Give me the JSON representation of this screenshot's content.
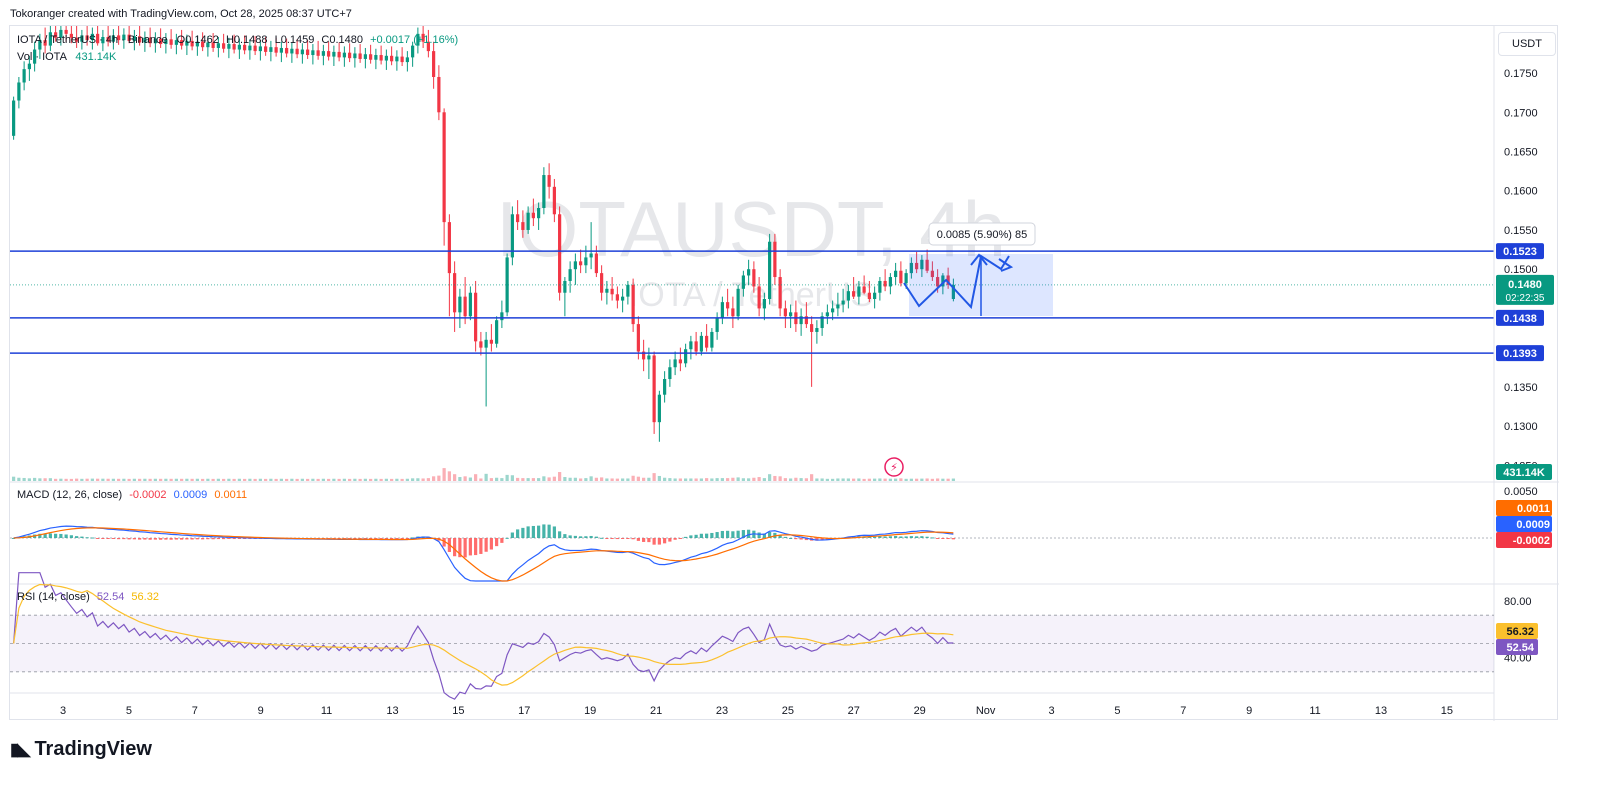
{
  "header": {
    "title": "Tokoranger created with TradingView.com, Oct 28, 2025 08:37 UTC+7"
  },
  "legend": {
    "symbol": "IOTA / TetherUS · 4h · Binance",
    "open": "O0.1462",
    "high": "H0.1488",
    "low": "L0.1459",
    "close": "C0.1480",
    "change": "+0.0017 (+1.16%)",
    "volume_label": "Vol · IOTA",
    "volume_value": "431.14K"
  },
  "watermark": {
    "symbol": "IOTAUSDT, 4h",
    "name": "IOTA / TetherUS"
  },
  "currency_button": "USDT",
  "price_axis": {
    "ticks": [
      "0.1750",
      "0.1700",
      "0.1650",
      "0.1600",
      "0.1550",
      "0.1500",
      "0.1350",
      "0.1300",
      "0.1250"
    ],
    "levels": [
      "0.1523",
      "0.1438",
      "0.1393"
    ],
    "current_price": "0.1480",
    "countdown": "02:22:35",
    "volume_tag": "431.14K"
  },
  "measure_label": "0.0085 (5.90%) 85",
  "macd": {
    "label": "MACD (12, 26, close)",
    "hist": "-0.0002",
    "macd": "0.0009",
    "signal": "0.0011",
    "axis_top": "0.0050"
  },
  "rsi": {
    "label": "RSI (14, close)",
    "rsi": "52.54",
    "ma": "56.32",
    "axis": [
      "80.00",
      "40.00"
    ]
  },
  "time_axis": [
    "3",
    "5",
    "7",
    "9",
    "11",
    "13",
    "15",
    "17",
    "19",
    "21",
    "23",
    "25",
    "27",
    "29",
    "Nov",
    "3",
    "5",
    "7",
    "9",
    "11",
    "13",
    "15"
  ],
  "brand": "TradingView",
  "colors": {
    "up": "#089981",
    "down": "#f23645",
    "level_line": "#1e40d8",
    "macd": "#2962ff",
    "signal": "#ff6d00",
    "rsi": "#7e57c2",
    "rsi_ma": "#fbc02d"
  },
  "chart_data": {
    "type": "candlestick",
    "symbol": "IOTAUSDT",
    "interval": "4h",
    "ohlc": [
      [
        0.167,
        0.172,
        0.1665,
        0.1715
      ],
      [
        0.1715,
        0.1745,
        0.1705,
        0.1738
      ],
      [
        0.1738,
        0.1765,
        0.1728,
        0.1755
      ],
      [
        0.1755,
        0.1772,
        0.174,
        0.1762
      ],
      [
        0.1762,
        0.179,
        0.1752,
        0.178
      ],
      [
        0.178,
        0.18,
        0.1768,
        0.1792
      ],
      [
        0.1792,
        0.1808,
        0.1775,
        0.1785
      ],
      [
        0.1785,
        0.1812,
        0.1778,
        0.1802
      ],
      [
        0.1802,
        0.1815,
        0.179,
        0.1795
      ],
      [
        0.1795,
        0.1812,
        0.1785,
        0.1805
      ],
      [
        0.1805,
        0.1815,
        0.179,
        0.18
      ],
      [
        0.18,
        0.1812,
        0.1788,
        0.1795
      ],
      [
        0.1795,
        0.181,
        0.1782,
        0.179
      ],
      [
        0.179,
        0.1805,
        0.178,
        0.1798
      ],
      [
        0.1798,
        0.1812,
        0.1785,
        0.1792
      ],
      [
        0.1792,
        0.1808,
        0.178,
        0.18
      ],
      [
        0.18,
        0.1812,
        0.1785,
        0.1788
      ],
      [
        0.1788,
        0.1805,
        0.1778,
        0.1796
      ],
      [
        0.1796,
        0.181,
        0.1784,
        0.179
      ],
      [
        0.179,
        0.1806,
        0.178,
        0.1798
      ],
      [
        0.1798,
        0.1811,
        0.1786,
        0.1792
      ],
      [
        0.1792,
        0.1807,
        0.1781,
        0.1799
      ],
      [
        0.1799,
        0.1812,
        0.1788,
        0.1791
      ],
      [
        0.1791,
        0.1805,
        0.1779,
        0.1797
      ],
      [
        0.1797,
        0.181,
        0.1785,
        0.1789
      ],
      [
        0.1789,
        0.1803,
        0.1777,
        0.1795
      ],
      [
        0.1795,
        0.1808,
        0.1783,
        0.1788
      ],
      [
        0.1788,
        0.1802,
        0.1776,
        0.1794
      ],
      [
        0.1794,
        0.1807,
        0.1782,
        0.1787
      ],
      [
        0.1787,
        0.1801,
        0.1775,
        0.1793
      ],
      [
        0.1793,
        0.1806,
        0.1781,
        0.1786
      ],
      [
        0.1786,
        0.18,
        0.1774,
        0.1792
      ],
      [
        0.1792,
        0.1805,
        0.178,
        0.1785
      ],
      [
        0.1785,
        0.1799,
        0.1773,
        0.1791
      ],
      [
        0.1791,
        0.1804,
        0.1779,
        0.1784
      ],
      [
        0.1784,
        0.1798,
        0.1772,
        0.179
      ],
      [
        0.179,
        0.1802,
        0.1778,
        0.1783
      ],
      [
        0.1783,
        0.1797,
        0.1771,
        0.1789
      ],
      [
        0.1789,
        0.1801,
        0.1777,
        0.1782
      ],
      [
        0.1782,
        0.1796,
        0.177,
        0.1788
      ],
      [
        0.1788,
        0.18,
        0.1776,
        0.1781
      ],
      [
        0.1781,
        0.1795,
        0.1769,
        0.1787
      ],
      [
        0.1787,
        0.1799,
        0.1775,
        0.178
      ],
      [
        0.178,
        0.1794,
        0.1768,
        0.1786
      ],
      [
        0.1786,
        0.1798,
        0.1774,
        0.1779
      ],
      [
        0.1779,
        0.1793,
        0.1767,
        0.1785
      ],
      [
        0.1785,
        0.1797,
        0.1773,
        0.1778
      ],
      [
        0.1778,
        0.1792,
        0.1766,
        0.1784
      ],
      [
        0.1784,
        0.1796,
        0.1772,
        0.1777
      ],
      [
        0.1777,
        0.1791,
        0.1765,
        0.1783
      ],
      [
        0.1783,
        0.1795,
        0.1771,
        0.1776
      ],
      [
        0.1776,
        0.179,
        0.1764,
        0.1782
      ],
      [
        0.1782,
        0.1794,
        0.177,
        0.1775
      ],
      [
        0.1775,
        0.1789,
        0.1763,
        0.1781
      ],
      [
        0.1781,
        0.1793,
        0.1769,
        0.1774
      ],
      [
        0.1774,
        0.1788,
        0.1762,
        0.178
      ],
      [
        0.178,
        0.1792,
        0.1768,
        0.1773
      ],
      [
        0.1773,
        0.1787,
        0.1761,
        0.1779
      ],
      [
        0.1779,
        0.1791,
        0.1767,
        0.1772
      ],
      [
        0.1772,
        0.1786,
        0.176,
        0.1778
      ],
      [
        0.1778,
        0.179,
        0.1766,
        0.1771
      ],
      [
        0.1771,
        0.1785,
        0.1759,
        0.1777
      ],
      [
        0.1777,
        0.1789,
        0.1765,
        0.177
      ],
      [
        0.177,
        0.1784,
        0.1758,
        0.1776
      ],
      [
        0.1776,
        0.1788,
        0.1764,
        0.1769
      ],
      [
        0.1769,
        0.1783,
        0.1757,
        0.1775
      ],
      [
        0.1775,
        0.1787,
        0.1763,
        0.1768
      ],
      [
        0.1768,
        0.1782,
        0.1756,
        0.1774
      ],
      [
        0.1774,
        0.1786,
        0.1762,
        0.1767
      ],
      [
        0.1767,
        0.1781,
        0.1755,
        0.1773
      ],
      [
        0.1773,
        0.1785,
        0.1761,
        0.1766
      ],
      [
        0.1766,
        0.178,
        0.1754,
        0.1772
      ],
      [
        0.1772,
        0.1784,
        0.176,
        0.1765
      ],
      [
        0.1765,
        0.1779,
        0.1753,
        0.1771
      ],
      [
        0.1771,
        0.1783,
        0.1759,
        0.1764
      ],
      [
        0.1764,
        0.1778,
        0.1752,
        0.177
      ],
      [
        0.177,
        0.179,
        0.1758,
        0.1785
      ],
      [
        0.1785,
        0.1808,
        0.1775,
        0.18
      ],
      [
        0.18,
        0.1812,
        0.1782,
        0.179
      ],
      [
        0.179,
        0.1805,
        0.177,
        0.1778
      ],
      [
        0.1778,
        0.179,
        0.173,
        0.1745
      ],
      [
        0.1745,
        0.176,
        0.169,
        0.17
      ],
      [
        0.17,
        0.1705,
        0.153,
        0.156
      ],
      [
        0.156,
        0.157,
        0.144,
        0.1495
      ],
      [
        0.1495,
        0.151,
        0.142,
        0.1445
      ],
      [
        0.1445,
        0.1475,
        0.1425,
        0.1465
      ],
      [
        0.1465,
        0.149,
        0.143,
        0.144
      ],
      [
        0.144,
        0.1478,
        0.1435,
        0.147
      ],
      [
        0.147,
        0.1485,
        0.1395,
        0.1408
      ],
      [
        0.1408,
        0.142,
        0.139,
        0.14
      ],
      [
        0.14,
        0.142,
        0.1325,
        0.141
      ],
      [
        0.141,
        0.143,
        0.1395,
        0.1405
      ],
      [
        0.1405,
        0.144,
        0.14,
        0.1435
      ],
      [
        0.1435,
        0.146,
        0.1425,
        0.1445
      ],
      [
        0.1445,
        0.152,
        0.144,
        0.1515
      ],
      [
        0.1515,
        0.158,
        0.1505,
        0.157
      ],
      [
        0.157,
        0.1588,
        0.155,
        0.156
      ],
      [
        0.156,
        0.1575,
        0.154,
        0.155
      ],
      [
        0.155,
        0.158,
        0.1545,
        0.1572
      ],
      [
        0.1572,
        0.159,
        0.1555,
        0.1565
      ],
      [
        0.1565,
        0.1585,
        0.155,
        0.1578
      ],
      [
        0.1578,
        0.163,
        0.157,
        0.162
      ],
      [
        0.162,
        0.1635,
        0.159,
        0.1605
      ],
      [
        0.1605,
        0.1615,
        0.156,
        0.157
      ],
      [
        0.157,
        0.158,
        0.146,
        0.147
      ],
      [
        0.147,
        0.149,
        0.144,
        0.1485
      ],
      [
        0.1485,
        0.151,
        0.147,
        0.15
      ],
      [
        0.15,
        0.152,
        0.148,
        0.151
      ],
      [
        0.151,
        0.1525,
        0.1495,
        0.1505
      ],
      [
        0.1505,
        0.153,
        0.1495,
        0.1515
      ],
      [
        0.1515,
        0.156,
        0.15,
        0.152
      ],
      [
        0.152,
        0.153,
        0.149,
        0.1495
      ],
      [
        0.1495,
        0.1505,
        0.146,
        0.147
      ],
      [
        0.147,
        0.1485,
        0.1455,
        0.1475
      ],
      [
        0.1475,
        0.149,
        0.146,
        0.1468
      ],
      [
        0.1468,
        0.1478,
        0.145,
        0.146
      ],
      [
        0.146,
        0.1475,
        0.1445,
        0.1465
      ],
      [
        0.1465,
        0.1485,
        0.1455,
        0.148
      ],
      [
        0.148,
        0.1488,
        0.142,
        0.143
      ],
      [
        0.143,
        0.144,
        0.1385,
        0.1395
      ],
      [
        0.1395,
        0.141,
        0.137,
        0.1385
      ],
      [
        0.1385,
        0.14,
        0.136,
        0.139
      ],
      [
        0.139,
        0.1395,
        0.129,
        0.1305
      ],
      [
        0.1305,
        0.1345,
        0.128,
        0.134
      ],
      [
        0.134,
        0.137,
        0.133,
        0.136
      ],
      [
        0.136,
        0.1385,
        0.135,
        0.1375
      ],
      [
        0.1375,
        0.1395,
        0.1365,
        0.1385
      ],
      [
        0.1385,
        0.14,
        0.137,
        0.138
      ],
      [
        0.138,
        0.1405,
        0.1375,
        0.1398
      ],
      [
        0.1398,
        0.1415,
        0.1385,
        0.1408
      ],
      [
        0.1408,
        0.142,
        0.139,
        0.1395
      ],
      [
        0.1395,
        0.142,
        0.139,
        0.1415
      ],
      [
        0.1415,
        0.143,
        0.1395,
        0.14
      ],
      [
        0.14,
        0.1425,
        0.1395,
        0.142
      ],
      [
        0.142,
        0.1445,
        0.141,
        0.1438
      ],
      [
        0.1438,
        0.1465,
        0.143,
        0.1458
      ],
      [
        0.1458,
        0.1475,
        0.144,
        0.145
      ],
      [
        0.145,
        0.1465,
        0.1425,
        0.144
      ],
      [
        0.144,
        0.148,
        0.1435,
        0.1475
      ],
      [
        0.1475,
        0.1498,
        0.1465,
        0.1492
      ],
      [
        0.1492,
        0.1512,
        0.148,
        0.15
      ],
      [
        0.15,
        0.151,
        0.147,
        0.1478
      ],
      [
        0.1478,
        0.149,
        0.144,
        0.145
      ],
      [
        0.145,
        0.147,
        0.1435,
        0.1462
      ],
      [
        0.1462,
        0.1545,
        0.1455,
        0.1535
      ],
      [
        0.1535,
        0.1545,
        0.148,
        0.149
      ],
      [
        0.149,
        0.15,
        0.144,
        0.145
      ],
      [
        0.145,
        0.146,
        0.1425,
        0.144
      ],
      [
        0.144,
        0.1455,
        0.1425,
        0.1445
      ],
      [
        0.1445,
        0.146,
        0.142,
        0.143
      ],
      [
        0.143,
        0.145,
        0.1415,
        0.144
      ],
      [
        0.144,
        0.1458,
        0.1425,
        0.143
      ],
      [
        0.143,
        0.144,
        0.135,
        0.142
      ],
      [
        0.142,
        0.1435,
        0.1405,
        0.1425
      ],
      [
        0.1425,
        0.1445,
        0.1415,
        0.144
      ],
      [
        0.144,
        0.1455,
        0.143,
        0.1445
      ],
      [
        0.1445,
        0.146,
        0.1435,
        0.145
      ],
      [
        0.145,
        0.147,
        0.144,
        0.1455
      ],
      [
        0.1455,
        0.1475,
        0.1445,
        0.146
      ],
      [
        0.146,
        0.148,
        0.145,
        0.1472
      ],
      [
        0.1472,
        0.149,
        0.1462,
        0.1465
      ],
      [
        0.1465,
        0.1485,
        0.1455,
        0.1478
      ],
      [
        0.1478,
        0.1492,
        0.1468,
        0.147
      ],
      [
        0.147,
        0.1485,
        0.1458,
        0.1462
      ],
      [
        0.1462,
        0.1478,
        0.145,
        0.147
      ],
      [
        0.147,
        0.149,
        0.146,
        0.1485
      ],
      [
        0.1485,
        0.15,
        0.1472,
        0.1478
      ],
      [
        0.1478,
        0.1495,
        0.1468,
        0.149
      ],
      [
        0.149,
        0.1508,
        0.148,
        0.1498
      ],
      [
        0.1498,
        0.151,
        0.1478,
        0.1482
      ],
      [
        0.1482,
        0.15,
        0.1475,
        0.1495
      ],
      [
        0.1495,
        0.1515,
        0.1488,
        0.1508
      ],
      [
        0.1508,
        0.1522,
        0.1495,
        0.15
      ],
      [
        0.15,
        0.1518,
        0.149,
        0.1512
      ],
      [
        0.1512,
        0.1525,
        0.1495,
        0.1498
      ],
      [
        0.1498,
        0.151,
        0.1485,
        0.149
      ],
      [
        0.149,
        0.15,
        0.147,
        0.1478
      ],
      [
        0.1478,
        0.1495,
        0.1468,
        0.1492
      ],
      [
        0.1492,
        0.1502,
        0.1475,
        0.148
      ],
      [
        0.1462,
        0.1488,
        0.1459,
        0.148
      ]
    ],
    "levels": [
      0.1523,
      0.1438,
      0.1393
    ],
    "current_price": 0.148,
    "y_range": [
      0.123,
      0.181
    ],
    "measure": {
      "from": 0.1438,
      "to": 0.1523,
      "change": "0.0085 (5.90%)",
      "bars": 85
    },
    "macd_axis_top": 0.005,
    "rsi_axis": [
      80,
      40
    ],
    "x_ticks": [
      "3",
      "5",
      "7",
      "9",
      "11",
      "13",
      "15",
      "17",
      "19",
      "21",
      "23",
      "25",
      "27",
      "29",
      "Nov",
      "3",
      "5",
      "7",
      "9",
      "11",
      "13",
      "15"
    ]
  }
}
